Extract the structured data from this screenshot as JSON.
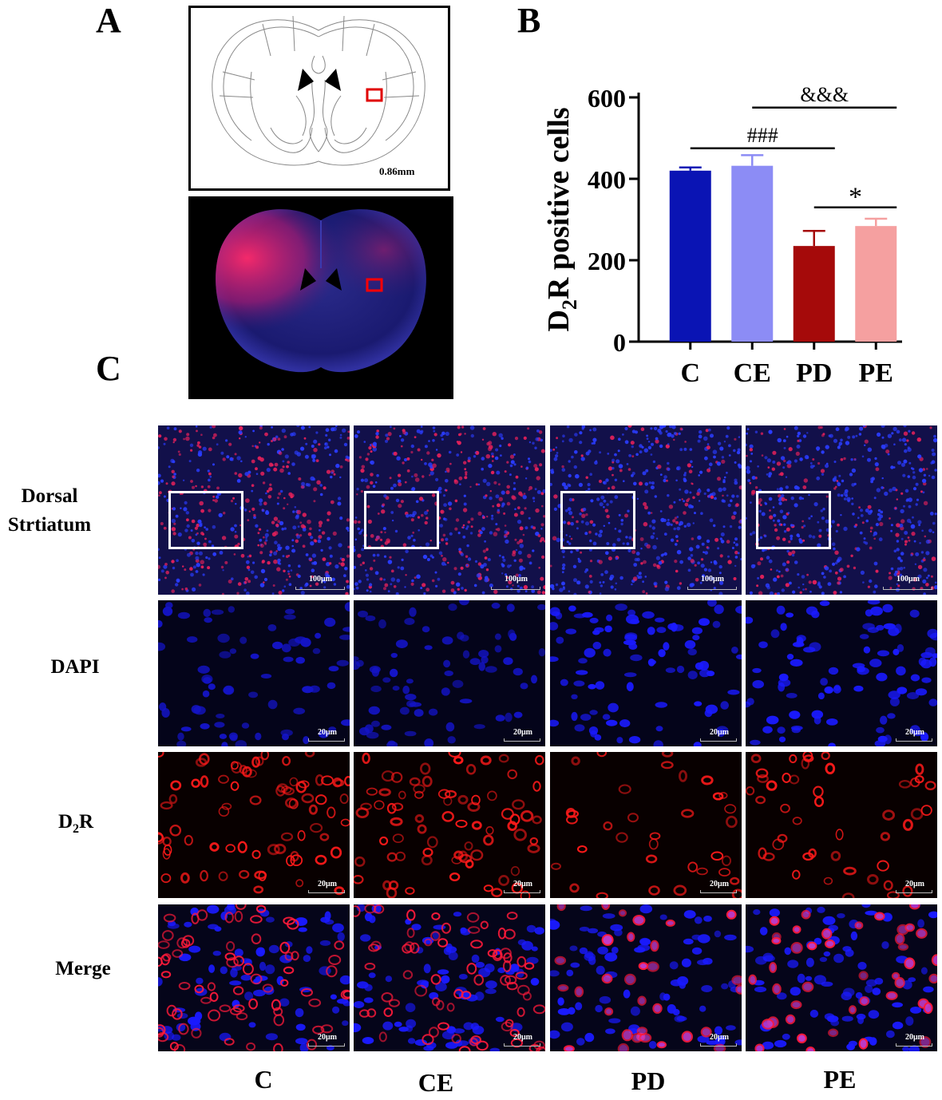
{
  "panels": {
    "a": "A",
    "b": "B",
    "c": "C"
  },
  "atlas": {
    "depth_label": "0.86mm"
  },
  "chart_data": {
    "type": "bar",
    "categories": [
      "C",
      "CE",
      "PD",
      "PE"
    ],
    "values": [
      420,
      432,
      235,
      284
    ],
    "errors": [
      8,
      26,
      37,
      18
    ],
    "colors": [
      "#0a14b4",
      "#8c8cf5",
      "#a50a0a",
      "#f5a0a0"
    ],
    "ylabel_main": "D",
    "ylabel_sub": "2",
    "ylabel_rest": "R positive cells",
    "yticks": [
      0,
      200,
      400,
      600
    ],
    "ylim": [
      0,
      600
    ],
    "annotations": [
      {
        "text": "###",
        "from": "C",
        "to": "PD",
        "y": 475
      },
      {
        "text": "&&&",
        "from": "CE",
        "to": "PE",
        "y": 575
      },
      {
        "text": "*",
        "from": "PD",
        "to": "PE",
        "y": 330
      }
    ]
  },
  "grid": {
    "rows": [
      {
        "label_line1": "Dorsal",
        "label_line2": "Strtiatum",
        "scale": "100μm"
      },
      {
        "label_line1": "DAPI",
        "label_line2": "",
        "scale": "20μm"
      },
      {
        "label_line1": "D",
        "label_sub": "2",
        "label_rest": "R",
        "scale": "20μm"
      },
      {
        "label_line1": "Merge",
        "label_line2": "",
        "scale": "20μm"
      }
    ],
    "columns": [
      "C",
      "CE",
      "PD",
      "PE"
    ]
  }
}
